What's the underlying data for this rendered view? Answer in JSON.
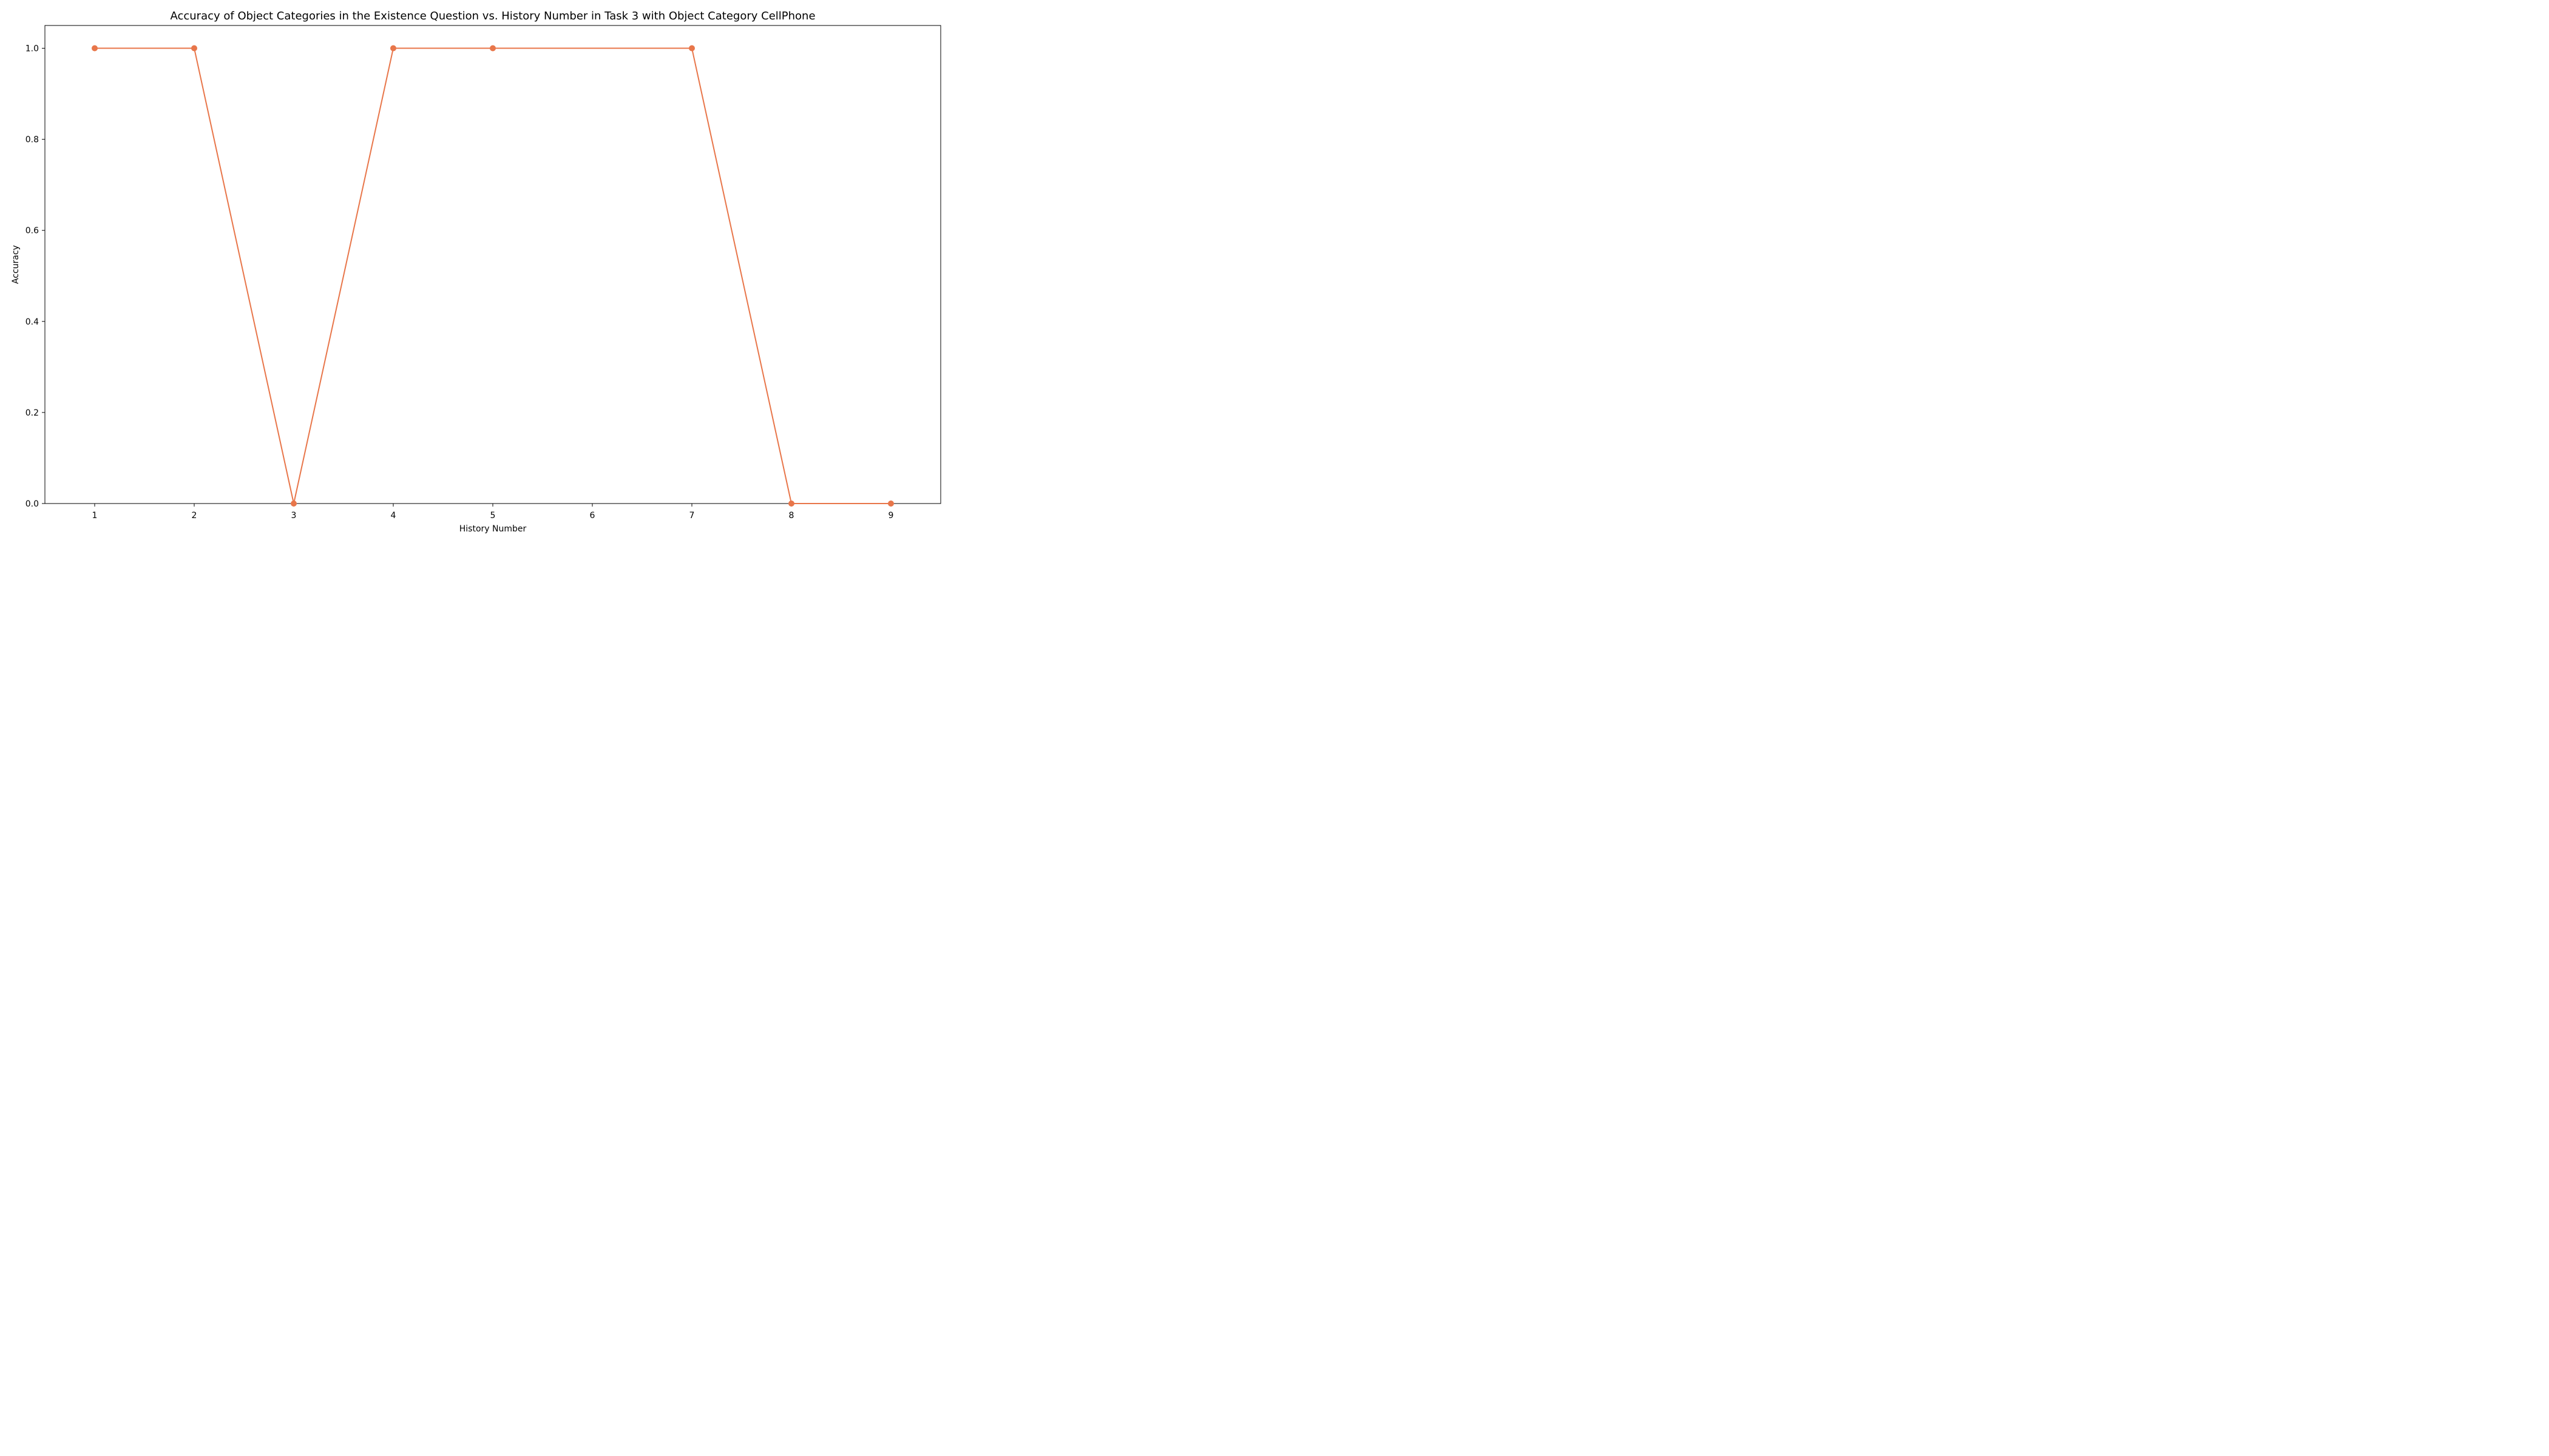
{
  "chart_data": {
    "type": "line",
    "title": "Accuracy of Object Categories in the Existence Question vs. History Number in Task 3 with Object Category CellPhone",
    "xlabel": "History Number",
    "ylabel": "Accuracy",
    "x": [
      1,
      2,
      3,
      4,
      5,
      6,
      7,
      8,
      9
    ],
    "xticks": [
      "1",
      "2",
      "3",
      "4",
      "5",
      "6",
      "7",
      "8",
      "9"
    ],
    "yticks": [
      "0.0",
      "0.2",
      "0.4",
      "0.6",
      "0.8",
      "1.0"
    ],
    "xlim": [
      0.5,
      9.5
    ],
    "ylim": [
      0,
      1.05
    ],
    "grid": false,
    "series": [
      {
        "color": "#E8764A",
        "points": [
          {
            "x": 1,
            "y": 1.0,
            "marker": true
          },
          {
            "x": 2,
            "y": 1.0,
            "marker": true
          },
          {
            "x": 3,
            "y": 0.0,
            "marker": true
          },
          {
            "x": 4,
            "y": 1.0,
            "marker": true
          },
          {
            "x": 5,
            "y": 1.0,
            "marker": true
          },
          {
            "x": 6,
            "y": 1.0,
            "marker": false
          },
          {
            "x": 7,
            "y": 1.0,
            "marker": true
          },
          {
            "x": 8,
            "y": 0.0,
            "marker": true
          },
          {
            "x": 9,
            "y": 0.0,
            "marker": true
          }
        ]
      }
    ]
  }
}
